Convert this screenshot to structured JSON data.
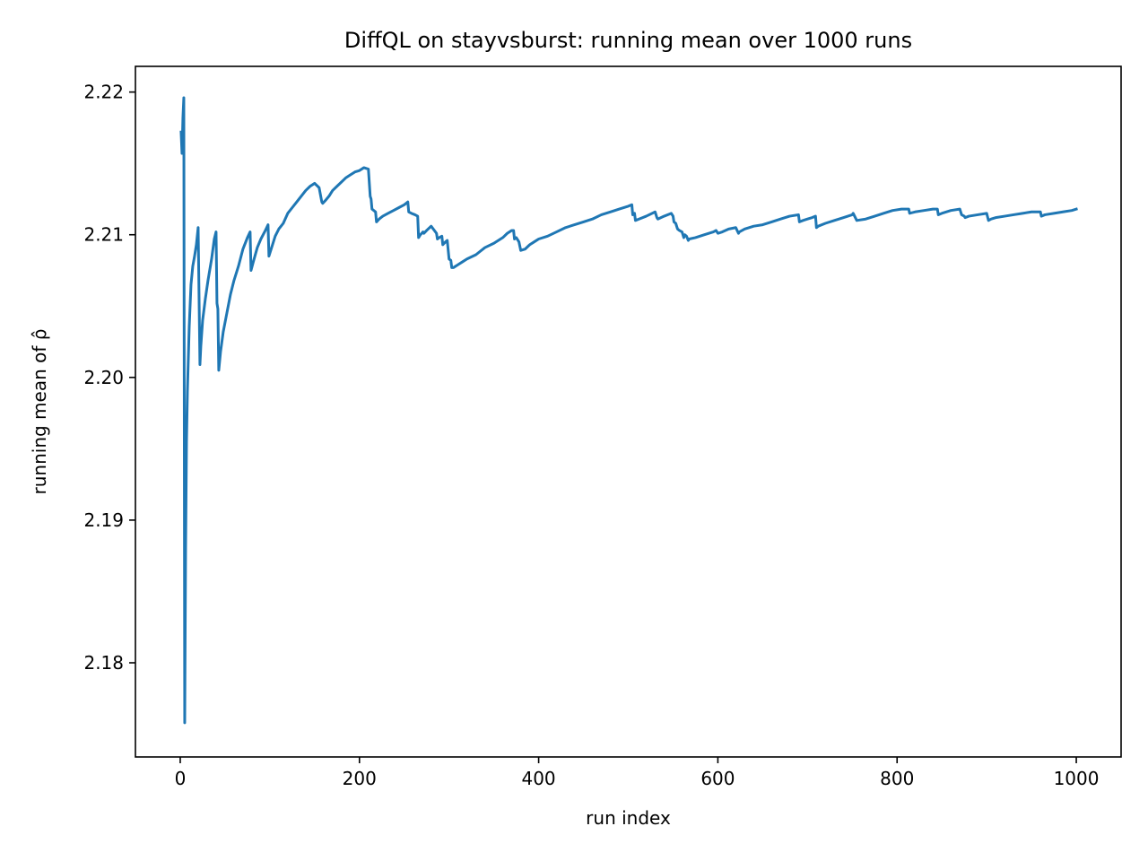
{
  "chart_data": {
    "type": "line",
    "title": "DiffQL on stayvsburst: running mean over 1000 runs",
    "xlabel": "run index",
    "ylabel": "running mean of ρ̂",
    "xlim": [
      -50,
      1050
    ],
    "ylim": [
      2.1734,
      2.2218
    ],
    "xticks": [
      0,
      200,
      400,
      600,
      800,
      1000
    ],
    "xtick_labels": [
      "0",
      "200",
      "400",
      "600",
      "800",
      "1000"
    ],
    "yticks": [
      2.18,
      2.19,
      2.2,
      2.21,
      2.22
    ],
    "ytick_labels": [
      "2.18",
      "2.19",
      "2.20",
      "2.21",
      "2.22"
    ],
    "grid": false,
    "legend": "none",
    "colors": {
      "line": "#1f77b4",
      "axes": "#000000",
      "background": "#ffffff"
    },
    "series": [
      {
        "x": [
          1,
          2,
          3,
          4,
          5,
          6,
          7,
          8,
          10,
          12,
          14,
          16,
          18,
          20,
          22,
          23,
          25,
          28,
          31,
          35,
          38,
          40,
          41,
          42,
          43,
          45,
          48,
          52,
          56,
          60,
          65,
          70,
          75,
          78,
          79,
          82,
          86,
          90,
          95,
          98,
          99,
          102,
          106,
          110,
          115,
          120,
          125,
          130,
          135,
          140,
          145,
          150,
          155,
          158,
          159,
          162,
          166,
          170,
          175,
          180,
          185,
          190,
          195,
          200,
          205,
          210,
          212,
          213,
          214,
          216,
          218,
          219,
          222,
          226,
          232,
          238,
          244,
          250,
          254,
          255,
          258,
          262,
          265,
          266,
          268,
          271,
          272,
          275,
          280,
          286,
          287,
          289,
          292,
          293,
          296,
          298,
          300,
          302,
          303,
          305,
          310,
          315,
          320,
          330,
          340,
          350,
          360,
          365,
          370,
          372,
          373,
          375,
          377,
          378,
          380,
          385,
          390,
          395,
          400,
          410,
          420,
          430,
          440,
          450,
          460,
          470,
          480,
          490,
          500,
          504,
          505,
          507,
          508,
          512,
          520,
          530,
          532,
          533,
          540,
          548,
          550,
          551,
          553,
          555,
          557,
          560,
          562,
          563,
          565,
          567,
          568,
          575,
          585,
          595,
          598,
          600,
          605,
          612,
          620,
          623,
          624,
          630,
          640,
          650,
          660,
          670,
          680,
          690,
          691,
          695,
          700,
          705,
          709,
          710,
          712,
          720,
          730,
          740,
          750,
          751,
          755,
          765,
          775,
          785,
          795,
          805,
          813,
          814,
          820,
          830,
          840,
          845,
          846,
          850,
          860,
          870,
          872,
          875,
          876,
          880,
          890,
          900,
          902,
          905,
          910,
          920,
          930,
          940,
          950,
          960,
          961,
          965,
          975,
          985,
          995,
          1000
        ],
        "y": [
          2.2172,
          2.2157,
          2.2182,
          2.2196,
          2.1758,
          2.188,
          2.1955,
          2.199,
          2.2035,
          2.2065,
          2.2078,
          2.2085,
          2.2093,
          2.2105,
          2.2009,
          2.2022,
          2.204,
          2.2055,
          2.2068,
          2.2083,
          2.2097,
          2.2102,
          2.2052,
          2.2048,
          2.2005,
          2.2018,
          2.2032,
          2.2045,
          2.2058,
          2.2068,
          2.2078,
          2.209,
          2.2098,
          2.2102,
          2.2075,
          2.2082,
          2.2091,
          2.2097,
          2.2103,
          2.2107,
          2.2085,
          2.2091,
          2.2099,
          2.2104,
          2.2108,
          2.2115,
          2.2119,
          2.2123,
          2.2127,
          2.2131,
          2.2134,
          2.2136,
          2.2133,
          2.2123,
          2.2122,
          2.2124,
          2.2127,
          2.2131,
          2.2134,
          2.2137,
          2.214,
          2.2142,
          2.2144,
          2.2145,
          2.2147,
          2.2146,
          2.2127,
          2.2125,
          2.2118,
          2.2117,
          2.2116,
          2.2109,
          2.2111,
          2.2113,
          2.2115,
          2.2117,
          2.2119,
          2.2121,
          2.2123,
          2.2116,
          2.2115,
          2.2114,
          2.2113,
          2.2098,
          2.21,
          2.2102,
          2.2101,
          2.2103,
          2.2106,
          2.2101,
          2.2097,
          2.2098,
          2.2099,
          2.2093,
          2.2095,
          2.2096,
          2.2083,
          2.2082,
          2.2077,
          2.2077,
          2.2079,
          2.2081,
          2.2083,
          2.2086,
          2.2091,
          2.2094,
          2.2098,
          2.2101,
          2.2103,
          2.2103,
          2.2097,
          2.2098,
          2.2096,
          2.2095,
          2.2089,
          2.209,
          2.2093,
          2.2095,
          2.2097,
          2.2099,
          2.2102,
          2.2105,
          2.2107,
          2.2109,
          2.2111,
          2.2114,
          2.2116,
          2.2118,
          2.212,
          2.2121,
          2.2114,
          2.2115,
          2.211,
          2.2111,
          2.2113,
          2.2116,
          2.2112,
          2.2111,
          2.2113,
          2.2115,
          2.2113,
          2.2109,
          2.2108,
          2.2104,
          2.2103,
          2.2102,
          2.2098,
          2.21,
          2.2099,
          2.2096,
          2.2097,
          2.2098,
          2.21,
          2.2102,
          2.2103,
          2.2101,
          2.2102,
          2.2104,
          2.2105,
          2.2101,
          2.2102,
          2.2104,
          2.2106,
          2.2107,
          2.2109,
          2.2111,
          2.2113,
          2.2114,
          2.2109,
          2.211,
          2.2111,
          2.2112,
          2.2113,
          2.2105,
          2.2106,
          2.2108,
          2.211,
          2.2112,
          2.2114,
          2.2115,
          2.211,
          2.2111,
          2.2113,
          2.2115,
          2.2117,
          2.2118,
          2.2118,
          2.2115,
          2.2116,
          2.2117,
          2.2118,
          2.2118,
          2.2114,
          2.2115,
          2.2117,
          2.2118,
          2.2114,
          2.2113,
          2.2112,
          2.2113,
          2.2114,
          2.2115,
          2.211,
          2.2111,
          2.2112,
          2.2113,
          2.2114,
          2.2115,
          2.2116,
          2.2116,
          2.2113,
          2.2114,
          2.2115,
          2.2116,
          2.2117,
          2.2118
        ]
      }
    ]
  }
}
